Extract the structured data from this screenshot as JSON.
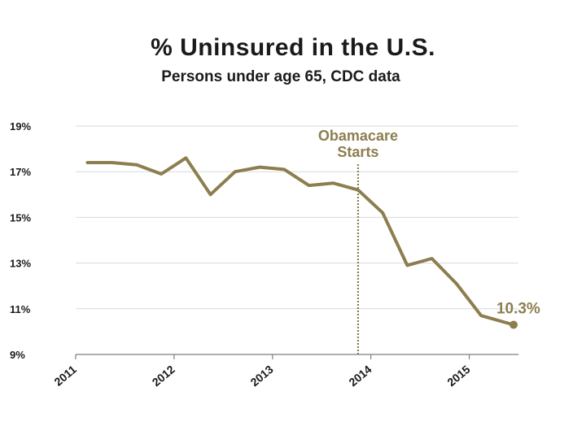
{
  "chart_data": {
    "type": "line",
    "title": "% Uninsured in the U.S.",
    "subtitle": "Persons under age 65, CDC data",
    "xlabel": "",
    "ylabel": "",
    "ylim": [
      9,
      19
    ],
    "xlim": [
      2011,
      2015.5
    ],
    "y_ticks": [
      19,
      17,
      15,
      13,
      11,
      9
    ],
    "y_tick_labels": [
      "19%",
      "17%",
      "15%",
      "13%",
      "11%",
      "9%"
    ],
    "x_ticks": [
      2011,
      2012,
      2013,
      2014,
      2015
    ],
    "x_tick_labels": [
      "2011",
      "2012",
      "2013",
      "2014",
      "2015"
    ],
    "grid": true,
    "color": "#8c7e4f",
    "series": [
      {
        "name": "% Uninsured",
        "x": [
          2011.12,
          2011.37,
          2011.62,
          2011.87,
          2012.12,
          2012.37,
          2012.62,
          2012.87,
          2013.12,
          2013.37,
          2013.62,
          2013.87,
          2014.12,
          2014.37,
          2014.62,
          2014.87,
          2015.12,
          2015.45
        ],
        "values": [
          17.4,
          17.4,
          17.3,
          16.9,
          17.6,
          16.0,
          17.0,
          17.2,
          17.1,
          16.4,
          16.5,
          16.2,
          15.2,
          12.9,
          13.2,
          12.1,
          10.7,
          10.3
        ]
      }
    ],
    "annotations": [
      {
        "id": "obamacare",
        "text_lines": [
          "Obamacare",
          "Starts"
        ],
        "x": 2013.87
      },
      {
        "id": "endvalue",
        "text": "10.3%"
      }
    ]
  }
}
